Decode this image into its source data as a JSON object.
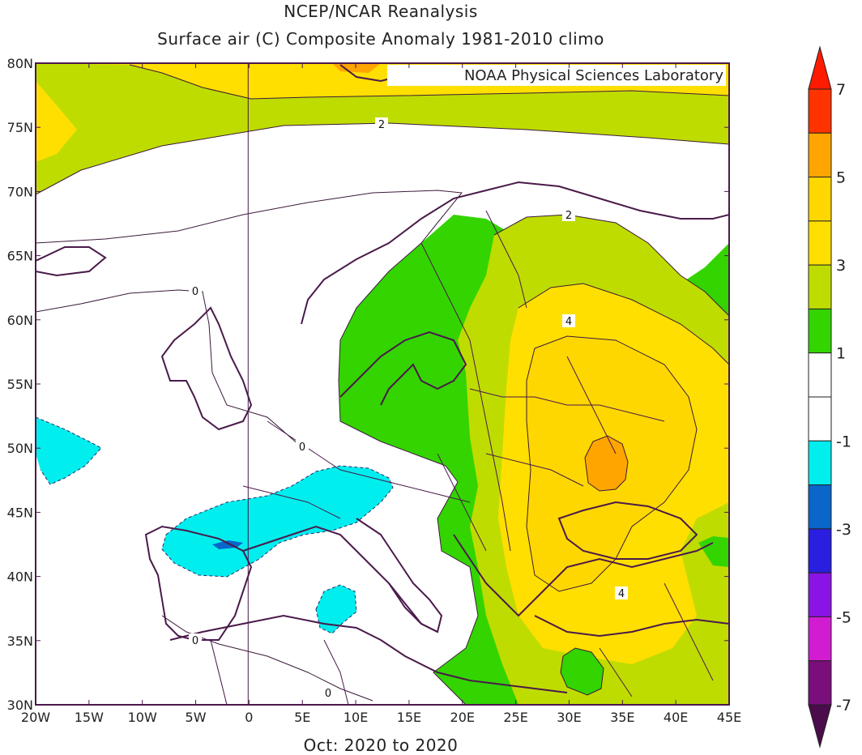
{
  "header": {
    "title": "NCEP/NCAR Reanalysis",
    "subtitle": "Surface air (C) Composite Anomaly 1981-2010 climo"
  },
  "footer": {
    "period": "Oct: 2020 to 2020"
  },
  "watermark": "NOAA Physical Sciences Laboratory",
  "map": {
    "lon_range": [
      -20,
      45
    ],
    "lat_range": [
      30,
      80
    ],
    "x_ticks": [
      "20W",
      "15W",
      "10W",
      "5W",
      "0",
      "5E",
      "10E",
      "15E",
      "20E",
      "25E",
      "30E",
      "35E",
      "40E",
      "45E"
    ],
    "y_ticks": [
      "80N",
      "75N",
      "70N",
      "65N",
      "60N",
      "55N",
      "50N",
      "45N",
      "40N",
      "35N",
      "30N"
    ],
    "contour_labels": [
      "2",
      "2",
      "0",
      "4",
      "0",
      "4",
      "0",
      "0"
    ]
  },
  "colorbar": {
    "labels": [
      "7",
      "5",
      "3",
      "1",
      "-1",
      "-3",
      "-5",
      "-7"
    ],
    "levels": [
      7,
      6,
      5,
      4,
      3,
      2,
      1,
      0,
      -1,
      -2,
      -3,
      -4,
      -5,
      -6,
      -7
    ],
    "colors": {
      "6_to_7": "#ff3300",
      "5_to_6": "#ffa500",
      "4_to_5": "#ffd700",
      "3_to_4": "#ffdf00",
      "2_to_3": "#bfdc00",
      "1_to_2": "#33d400",
      "0_to_1": "#ffffff",
      "-1_to_0": "#ffffff",
      "-2_to_-1": "#00eeee",
      "-3_to_-2": "#0a66c9",
      "-4_to_-3": "#2a1fe0",
      "-5_to_-4": "#8a14e6",
      "-6_to_-5": "#d21cd2",
      "-7_to_-6": "#7a0e7a",
      "above_7": "#ff1a00",
      "below_-7": "#4a0c4a"
    }
  }
}
